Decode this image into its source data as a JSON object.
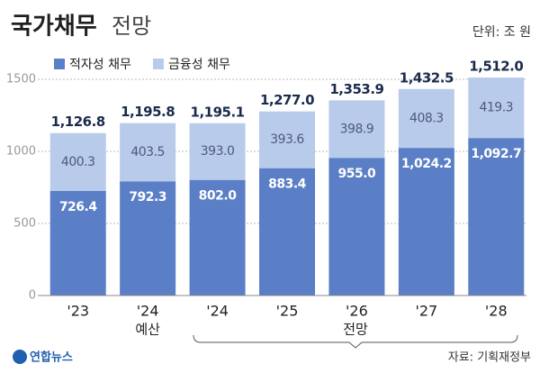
{
  "chart_data": {
    "type": "stacked-bar",
    "title": "국가채무",
    "subtitle": "전망",
    "unit": "단위: 조 원",
    "source": "자료: 기획재정부",
    "logo": "연합뉴스",
    "categories": [
      "'23",
      "'24",
      "'24",
      "'25",
      "'26",
      "'27",
      "'28"
    ],
    "category_notes": [
      null,
      "예산",
      null,
      null,
      null,
      null,
      null
    ],
    "forecast_label": "전망",
    "series": [
      {
        "name": "적자성 채무",
        "color": "#5b7fc6",
        "values": [
          726.4,
          792.3,
          802.0,
          883.4,
          955.0,
          1024.2,
          1092.7
        ],
        "value_labels": [
          "726.4",
          "792.3",
          "802.0",
          "883.4",
          "955.0",
          "1,024.2",
          "1,092.7"
        ]
      },
      {
        "name": "금융성 채무",
        "color": "#b9cbea",
        "values": [
          400.3,
          403.5,
          393.0,
          393.6,
          398.9,
          408.3,
          419.3
        ],
        "value_labels": [
          "400.3",
          "403.5",
          "393.0",
          "393.6",
          "398.9",
          "408.3",
          "419.3"
        ]
      }
    ],
    "total_labels": [
      "1,126.8",
      "1,195.8",
      "1,195.1",
      "1,277.0",
      "1,353.9",
      "1,432.5",
      "1,512.0"
    ],
    "ylim": [
      0,
      1600
    ],
    "yticks": [
      0,
      500,
      1000,
      1500
    ],
    "grid": true
  }
}
